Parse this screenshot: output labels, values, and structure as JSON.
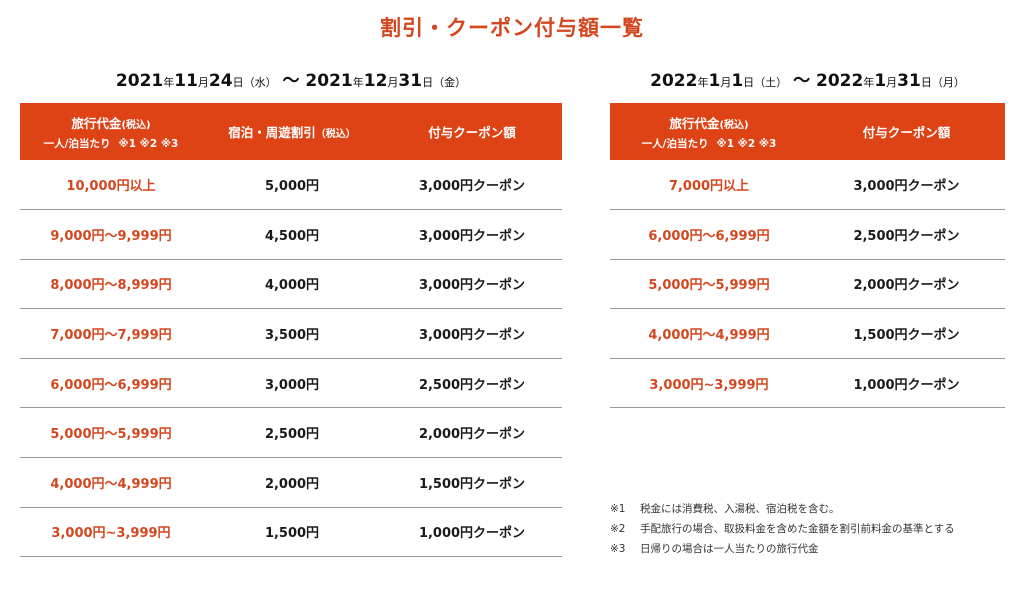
{
  "title": "割引・クーポン付与額一覧",
  "left": {
    "period": {
      "start_year": "2021",
      "start_year_unit": "年",
      "start_month": "11",
      "start_month_unit": "月",
      "start_day": "24",
      "start_day_unit": "日",
      "start_dow": "（水）",
      "sep": " ～ ",
      "end_year": "2021",
      "end_year_unit": "年",
      "end_month": "12",
      "end_month_unit": "月",
      "end_day": "31",
      "end_day_unit": "日",
      "end_dow": "（金）"
    },
    "header": {
      "col1_main": "旅行代金",
      "col1_sub": "(税込)",
      "col1_line2": "一人/泊当たり",
      "col1_marks": "※1 ※2 ※3",
      "col2_main": "宿泊・周遊割引",
      "col2_sub": "（税込）",
      "col3": "付与クーポン額"
    },
    "rows": [
      {
        "price": "10,000円以上",
        "discount": "5,000円",
        "coupon": "3,000円クーポン"
      },
      {
        "price": "9,000円～9,999円",
        "discount": "4,500円",
        "coupon": "3,000円クーポン"
      },
      {
        "price": "8,000円～8,999円",
        "discount": "4,000円",
        "coupon": "3,000円クーポン"
      },
      {
        "price": "7,000円～7,999円",
        "discount": "3,500円",
        "coupon": "3,000円クーポン"
      },
      {
        "price": "6,000円～6,999円",
        "discount": "3,000円",
        "coupon": "2,500円クーポン"
      },
      {
        "price": "5,000円～5,999円",
        "discount": "2,500円",
        "coupon": "2,000円クーポン"
      },
      {
        "price": "4,000円～4,999円",
        "discount": "2,000円",
        "coupon": "1,500円クーポン"
      },
      {
        "price": "3,000円~3,999円",
        "discount": "1,500円",
        "coupon": "1,000円クーポン"
      }
    ]
  },
  "right": {
    "period": {
      "start_year": "2022",
      "start_year_unit": "年",
      "start_month": "1",
      "start_month_unit": "月",
      "start_day": "1",
      "start_day_unit": "日",
      "start_dow": "（土）",
      "sep": " ～ ",
      "end_year": "2022",
      "end_year_unit": "年",
      "end_month": "1",
      "end_month_unit": "月",
      "end_day": "31",
      "end_day_unit": "日",
      "end_dow": "（月）"
    },
    "header": {
      "col1_main": "旅行代金",
      "col1_sub": "(税込)",
      "col1_line2": "一人/泊当たり",
      "col1_marks": "※1 ※2 ※3",
      "col2": "付与クーポン額"
    },
    "rows": [
      {
        "price": "7,000円以上",
        "coupon": "3,000円クーポン"
      },
      {
        "price": "6,000円～6,999円",
        "coupon": "2,500円クーポン"
      },
      {
        "price": "5,000円～5,999円",
        "coupon": "2,000円クーポン"
      },
      {
        "price": "4,000円～4,999円",
        "coupon": "1,500円クーポン"
      },
      {
        "price": "3,000円~3,999円",
        "coupon": "1,000円クーポン"
      }
    ]
  },
  "notes": [
    {
      "mark": "※1",
      "text": "税金には消費税、入湯税、宿泊税を含む。"
    },
    {
      "mark": "※2",
      "text": "手配旅行の場合、取扱料金を含めた金額を割引前料金の基準とする"
    },
    {
      "mark": "※3",
      "text": "日帰りの場合は一人当たりの旅行代金"
    }
  ],
  "colors": {
    "accent": "#de4316",
    "price_text": "#d4471e",
    "rule": "#9a9a9a"
  }
}
